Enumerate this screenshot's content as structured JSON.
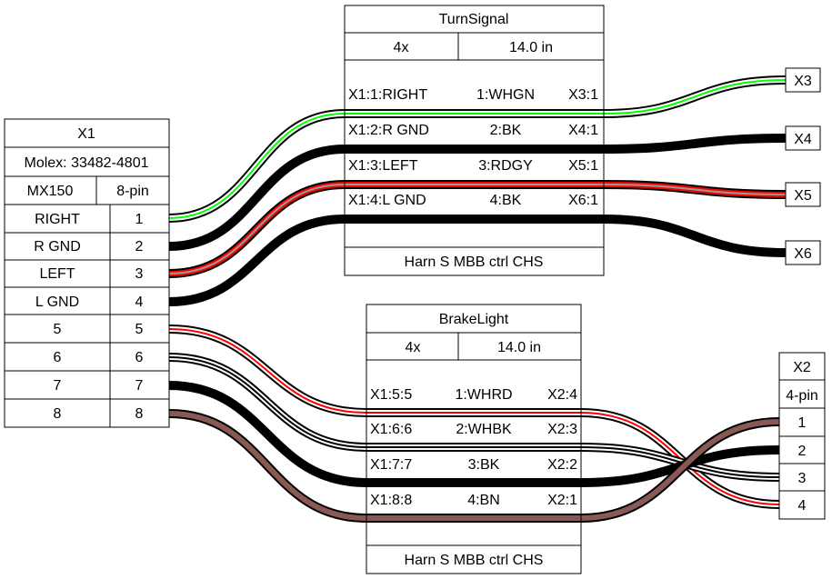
{
  "x1": {
    "title": "X1",
    "part": "Molex: 33482-4801",
    "series": "MX150",
    "pincount": "8-pin",
    "pins": [
      {
        "label": "RIGHT",
        "num": "1"
      },
      {
        "label": "R GND",
        "num": "2"
      },
      {
        "label": "LEFT",
        "num": "3"
      },
      {
        "label": "L GND",
        "num": "4"
      },
      {
        "label": "5",
        "num": "5"
      },
      {
        "label": "6",
        "num": "6"
      },
      {
        "label": "7",
        "num": "7"
      },
      {
        "label": "8",
        "num": "8"
      }
    ]
  },
  "turnsignal": {
    "title": "TurnSignal",
    "count": "4x",
    "length": "14.0 in",
    "wires": [
      {
        "from": "X1:1:RIGHT",
        "wire": "1:WHGN",
        "to": "X3:1"
      },
      {
        "from": "X1:2:R GND",
        "wire": "2:BK",
        "to": "X4:1"
      },
      {
        "from": "X1:3:LEFT",
        "wire": "3:RDGY",
        "to": "X5:1"
      },
      {
        "from": "X1:4:L GND",
        "wire": "4:BK",
        "to": "X6:1"
      }
    ],
    "footer": "Harn S MBB ctrl CHS"
  },
  "brakelight": {
    "title": "BrakeLight",
    "count": "4x",
    "length": "14.0 in",
    "wires": [
      {
        "from": "X1:5:5",
        "wire": "1:WHRD",
        "to": "X2:4"
      },
      {
        "from": "X1:6:6",
        "wire": "2:WHBK",
        "to": "X2:3"
      },
      {
        "from": "X1:7:7",
        "wire": "3:BK",
        "to": "X2:2"
      },
      {
        "from": "X1:8:8",
        "wire": "4:BN",
        "to": "X2:1"
      }
    ],
    "footer": "Harn S MBB ctrl CHS"
  },
  "ferrules": [
    "X3",
    "X4",
    "X5",
    "X6"
  ],
  "x2": {
    "title": "X2",
    "pincount": "4-pin",
    "pins": [
      "1",
      "2",
      "3",
      "4"
    ]
  },
  "colors": {
    "WH": "#ffffff",
    "GN": "#00ff00",
    "BK": "#000000",
    "RD": "#ff0000",
    "GY": "#999999",
    "BN": "#895956"
  }
}
